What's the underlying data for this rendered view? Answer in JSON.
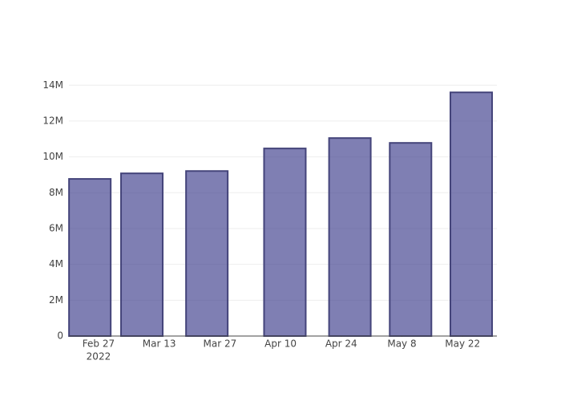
{
  "chart_data": {
    "type": "bar",
    "x": [
      "2022-02-25",
      "2022-03-09",
      "2022-03-24",
      "2022-04-11",
      "2022-04-26",
      "2022-05-10",
      "2022-05-24"
    ],
    "values": [
      8770000,
      9080000,
      9210000,
      10470000,
      11050000,
      10780000,
      13600000
    ],
    "color": "#3a3a8a",
    "edge_color": "#44447a",
    "xlim": [
      "2022-02-20T04:00",
      "2022-05-29T22:00"
    ],
    "xticks": [
      {
        "value": "2022-02-27",
        "label": "Feb 27"
      },
      {
        "value": "2022-03-13",
        "label": "Mar 13"
      },
      {
        "value": "2022-03-27",
        "label": "Mar 27"
      },
      {
        "value": "2022-04-10",
        "label": "Apr 10"
      },
      {
        "value": "2022-04-24",
        "label": "Apr 24"
      },
      {
        "value": "2022-05-08",
        "label": "May 8"
      },
      {
        "value": "2022-05-22",
        "label": "May 22"
      }
    ],
    "x_axis_year": "2022",
    "ylim": [
      0,
      14280000
    ],
    "yticks": [
      0,
      {
        "value": 2000000,
        "label": "2M"
      },
      {
        "value": 4000000,
        "label": "4M"
      },
      {
        "value": 6000000,
        "label": "6M"
      },
      {
        "value": 8000000,
        "label": "8M"
      },
      {
        "value": 10000000,
        "label": "10M"
      },
      {
        "value": 12000000,
        "label": "12M"
      },
      {
        "value": 14000000,
        "label": "14M"
      }
    ],
    "grid": true
  }
}
